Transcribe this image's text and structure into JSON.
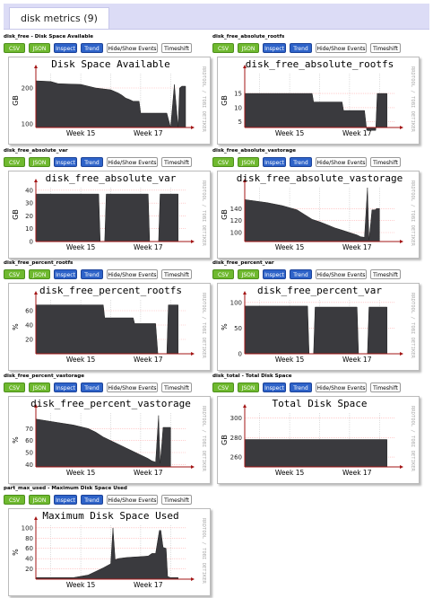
{
  "page": {
    "tab_label": "disk metrics (9)"
  },
  "buttons": {
    "csv": "CSV",
    "json": "JSON",
    "inspect": "Inspect",
    "trend": "Trend",
    "hide_show": "Hide/Show Events",
    "timeshift": "Timeshift"
  },
  "watermark": "RRDTOOL / TOBI OETIKER",
  "x_ticks": [
    "Week 15",
    "Week 17"
  ],
  "colors": {
    "area": "#3a3a3e",
    "axis": "#a31515",
    "grid": "#ffb0b0",
    "grid_v": "#c8c8c8",
    "tab_bar": "#dcdcf6",
    "csv": "#6fb92f",
    "inspect": "#2e63c9"
  },
  "tiles": [
    {
      "caption": "disk_free - Disk Space Available",
      "chart_data": {
        "type": "area",
        "title": "Disk Space Available",
        "ylabel": "GB",
        "ylim": [
          90,
          240
        ],
        "yticks": [
          100,
          200
        ],
        "x": [
          0,
          2,
          3,
          6,
          7,
          8,
          10,
          11,
          11.5,
          12,
          12.5,
          13,
          13.8,
          14,
          15,
          15.5,
          16,
          17.5,
          18,
          18.5,
          19,
          19.2,
          19.5,
          20
        ],
        "values": [
          220,
          218,
          212,
          210,
          205,
          200,
          195,
          186,
          180,
          172,
          168,
          163,
          163,
          130,
          130,
          130,
          130,
          130,
          90,
          210,
          90,
          200,
          205,
          205
        ]
      }
    },
    {
      "caption": "disk_free_absolute_rootfs",
      "chart_data": {
        "type": "area",
        "title": "disk_free_absolute_rootfs",
        "ylabel": "GB",
        "ylim": [
          3,
          22
        ],
        "yticks": [
          5,
          10,
          15
        ],
        "x": [
          0,
          9,
          9.2,
          13,
          13.2,
          16,
          16.3,
          17.5,
          17.7,
          19
        ],
        "values": [
          15,
          15,
          12,
          12,
          9,
          9,
          2,
          2,
          15,
          15
        ]
      }
    },
    {
      "caption": "disk_free_absolute_var",
      "chart_data": {
        "type": "area",
        "title": "disk_free_absolute_var",
        "ylabel": "GB",
        "ylim": [
          0,
          42
        ],
        "yticks": [
          0,
          10,
          20,
          30,
          40
        ],
        "x": [
          0,
          8.4,
          8.6,
          9.2,
          9.4,
          15,
          15.2,
          16.4,
          16.6,
          19
        ],
        "values": [
          37,
          37,
          0,
          0,
          37,
          37,
          0,
          0,
          37,
          37
        ]
      }
    },
    {
      "caption": "disk_free_absolute_vastorage",
      "chart_data": {
        "type": "area",
        "title": "disk_free_absolute_vastorage",
        "ylabel": "GB",
        "ylim": [
          85,
          175
        ],
        "yticks": [
          100,
          120,
          140
        ],
        "x": [
          0,
          3,
          5,
          7,
          8,
          9,
          10,
          11,
          12,
          13,
          14,
          15,
          15.5,
          16,
          16.4,
          16.6,
          16.8,
          17,
          17.4,
          17.6,
          18
        ],
        "values": [
          155,
          150,
          145,
          138,
          130,
          122,
          118,
          113,
          108,
          104,
          100,
          96,
          93,
          92,
          175,
          88,
          112,
          138,
          138,
          140,
          140
        ]
      }
    },
    {
      "caption": "disk_free_percent_rootfs",
      "chart_data": {
        "type": "area",
        "title": "disk_free_percent_rootfs",
        "ylabel": "%",
        "ylim": [
          0,
          75
        ],
        "yticks": [
          20,
          40,
          60
        ],
        "x": [
          0,
          9,
          9.2,
          13,
          13.2,
          16,
          16.3,
          17.5,
          17.7,
          19
        ],
        "values": [
          68,
          68,
          50,
          50,
          42,
          42,
          0,
          0,
          68,
          68
        ]
      }
    },
    {
      "caption": "disk_free_percent_var",
      "chart_data": {
        "type": "area",
        "title": "disk_free_percent_var",
        "ylabel": "%",
        "ylim": [
          0,
          105
        ],
        "yticks": [
          0,
          50,
          100
        ],
        "x": [
          0,
          8.4,
          8.6,
          9.2,
          9.4,
          15,
          15.2,
          16.4,
          16.6,
          19
        ],
        "values": [
          93,
          93,
          0,
          0,
          91,
          91,
          0,
          0,
          91,
          91
        ]
      }
    },
    {
      "caption": "disk_free_percent_vastorage",
      "chart_data": {
        "type": "area",
        "title": "disk_free_percent_vastorage",
        "ylabel": "%",
        "ylim": [
          38,
          83
        ],
        "yticks": [
          40,
          50,
          60,
          70
        ],
        "x": [
          0,
          3,
          5,
          7,
          8,
          9,
          10,
          11,
          12,
          13,
          14,
          15,
          15.5,
          16,
          16.4,
          16.6,
          16.8,
          17,
          17.4,
          17.6,
          18
        ],
        "values": [
          78,
          75,
          73,
          70,
          67,
          63,
          60,
          57,
          54,
          51,
          48,
          45,
          43,
          42,
          81,
          41,
          55,
          71,
          71,
          71,
          71
        ]
      }
    },
    {
      "caption": "disk_total - Total Disk Space",
      "chart_data": {
        "type": "area",
        "title": "Total Disk Space",
        "ylabel": "GB",
        "ylim": [
          250,
          305
        ],
        "yticks": [
          260,
          280,
          300
        ],
        "x": [
          0,
          19
        ],
        "values": [
          278,
          278
        ]
      }
    },
    {
      "caption": "part_max_used - Maximum Disk Space Used",
      "chart_data": {
        "type": "area",
        "title": "Maximum Disk Space Used",
        "ylabel": "%",
        "ylim": [
          0,
          105
        ],
        "yticks": [
          20,
          40,
          60,
          80,
          100
        ],
        "x": [
          0,
          5,
          7,
          8,
          9,
          10,
          10.3,
          10.6,
          11,
          12,
          13,
          14,
          15,
          15.5,
          16,
          16.5,
          16.7,
          17,
          17.4,
          17.6,
          18,
          19
        ],
        "values": [
          3,
          3,
          8,
          15,
          22,
          30,
          100,
          38,
          40,
          42,
          43,
          44,
          45,
          50,
          50,
          95,
          95,
          62,
          60,
          5,
          3,
          3
        ]
      }
    }
  ]
}
